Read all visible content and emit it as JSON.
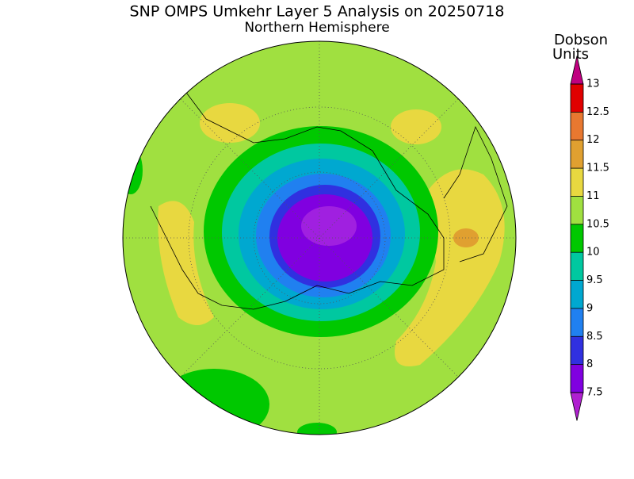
{
  "title": "SNP OMPS Umkehr Layer 5 Analysis on 20250718",
  "subtitle": "Northern Hemisphere",
  "colorbar": {
    "label_lines": [
      "Dobson",
      "Units"
    ],
    "ticks": [
      7.5,
      8,
      8.5,
      9,
      9.5,
      10,
      10.5,
      11,
      11.5,
      12,
      12.5,
      13
    ],
    "colors": [
      "#8000e0",
      "#3030e0",
      "#2080f0",
      "#00a8d0",
      "#00c8a0",
      "#00c800",
      "#a0e040",
      "#e8d840",
      "#e0a030",
      "#e87830",
      "#e00000"
    ],
    "under_color": "#b020d0",
    "over_color": "#c00080"
  }
}
